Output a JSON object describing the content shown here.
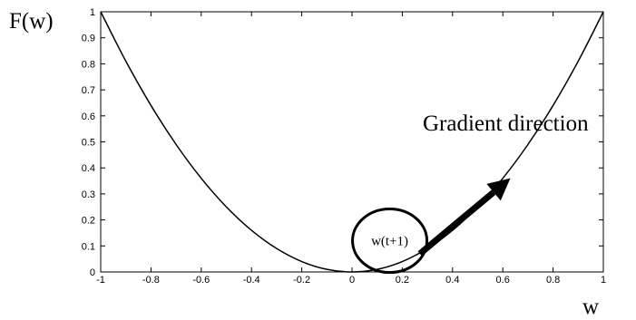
{
  "chart_data": {
    "type": "line",
    "xlabel": "w",
    "ylabel": "F(w)",
    "xlim": [
      -1,
      1
    ],
    "ylim": [
      0,
      1
    ],
    "xticks": [
      -1,
      -0.8,
      -0.6,
      -0.4,
      -0.2,
      0,
      0.2,
      0.4,
      0.6,
      0.8,
      1
    ],
    "xtick_labels": [
      "-1",
      "-0.8",
      "-0.6",
      "-0.4",
      "-0.2",
      "0",
      "0.2",
      "0.4",
      "0.6",
      "0.8",
      "1"
    ],
    "yticks": [
      0,
      0.1,
      0.2,
      0.3,
      0.4,
      0.5,
      0.6,
      0.7,
      0.8,
      0.9,
      1
    ],
    "ytick_labels": [
      "0",
      "0.1",
      "0.2",
      "0.3",
      "0.4",
      "0.5",
      "0.6",
      "0.7",
      "0.8",
      "0.9",
      "1"
    ],
    "grid": false,
    "series": [
      {
        "x": [
          -1,
          -0.9,
          -0.8,
          -0.7,
          -0.6,
          -0.5,
          -0.4,
          -0.3,
          -0.2,
          -0.1,
          0,
          0.1,
          0.2,
          0.3,
          0.4,
          0.5,
          0.6,
          0.7,
          0.8,
          0.9,
          1
        ],
        "y": [
          1,
          0.81,
          0.64,
          0.49,
          0.36,
          0.25,
          0.16,
          0.09,
          0.04,
          0.01,
          0,
          0.01,
          0.04,
          0.09,
          0.16,
          0.25,
          0.36,
          0.49,
          0.64,
          0.81,
          1
        ],
        "color": "#000000"
      }
    ],
    "annotations": {
      "gradient_label": "Gradient direction",
      "circle_label": "w(t+1)",
      "arrow_start": {
        "x": 0.27,
        "y": 0.07
      },
      "arrow_end": {
        "x": 0.63,
        "y": 0.36
      },
      "circle_center": {
        "x": 0.15,
        "y": 0.12
      }
    }
  }
}
